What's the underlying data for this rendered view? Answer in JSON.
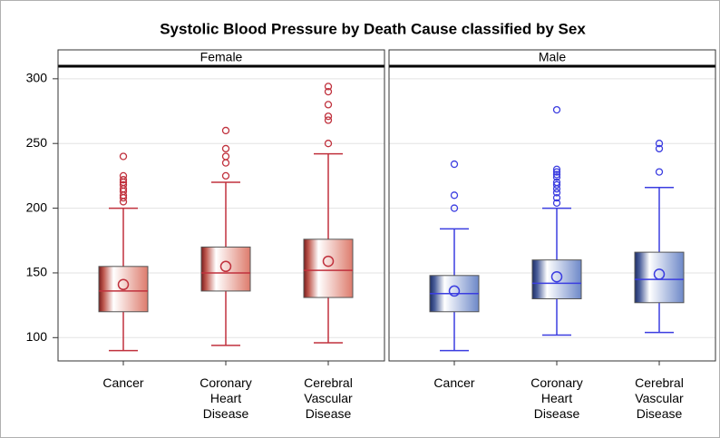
{
  "chart_data": {
    "type": "box",
    "title": "Systolic Blood Pressure by  Death Cause classified by Sex",
    "categories": [
      "Cancer",
      "Coronary Heart Disease",
      "Cerebral Vascular Disease"
    ],
    "ylim": [
      82,
      309
    ],
    "yticks": [
      100,
      150,
      200,
      250,
      300
    ],
    "grid": true,
    "panels": [
      {
        "name": "Female",
        "color": "#c0313d",
        "fill": "#dd7b6c",
        "boxes": [
          {
            "min": 90,
            "q1": 120,
            "median": 136,
            "q3": 155,
            "max": 200,
            "mean": 141,
            "outliers": [
              205,
              208,
              210,
              213,
              215,
              218,
              220,
              222,
              225,
              240
            ]
          },
          {
            "min": 94,
            "q1": 136,
            "median": 150,
            "q3": 170,
            "max": 220,
            "mean": 155,
            "outliers": [
              225,
              235,
              240,
              246,
              260
            ]
          },
          {
            "min": 96,
            "q1": 131,
            "median": 152,
            "q3": 176,
            "max": 242,
            "mean": 159,
            "outliers": [
              250,
              268,
              271,
              280,
              290,
              294
            ]
          }
        ]
      },
      {
        "name": "Male",
        "color": "#3b3de0",
        "fill": "#6d88c8",
        "boxes": [
          {
            "min": 90,
            "q1": 120,
            "median": 134,
            "q3": 148,
            "max": 184,
            "mean": 136,
            "outliers": [
              200,
              210,
              234
            ]
          },
          {
            "min": 102,
            "q1": 130,
            "median": 142,
            "q3": 160,
            "max": 200,
            "mean": 147,
            "outliers": [
              204,
              208,
              212,
              215,
              218,
              220,
              224,
              226,
              228,
              230,
              276
            ]
          },
          {
            "min": 104,
            "q1": 127,
            "median": 145,
            "q3": 166,
            "max": 216,
            "mean": 149,
            "outliers": [
              228,
              246,
              250
            ]
          }
        ]
      }
    ]
  }
}
